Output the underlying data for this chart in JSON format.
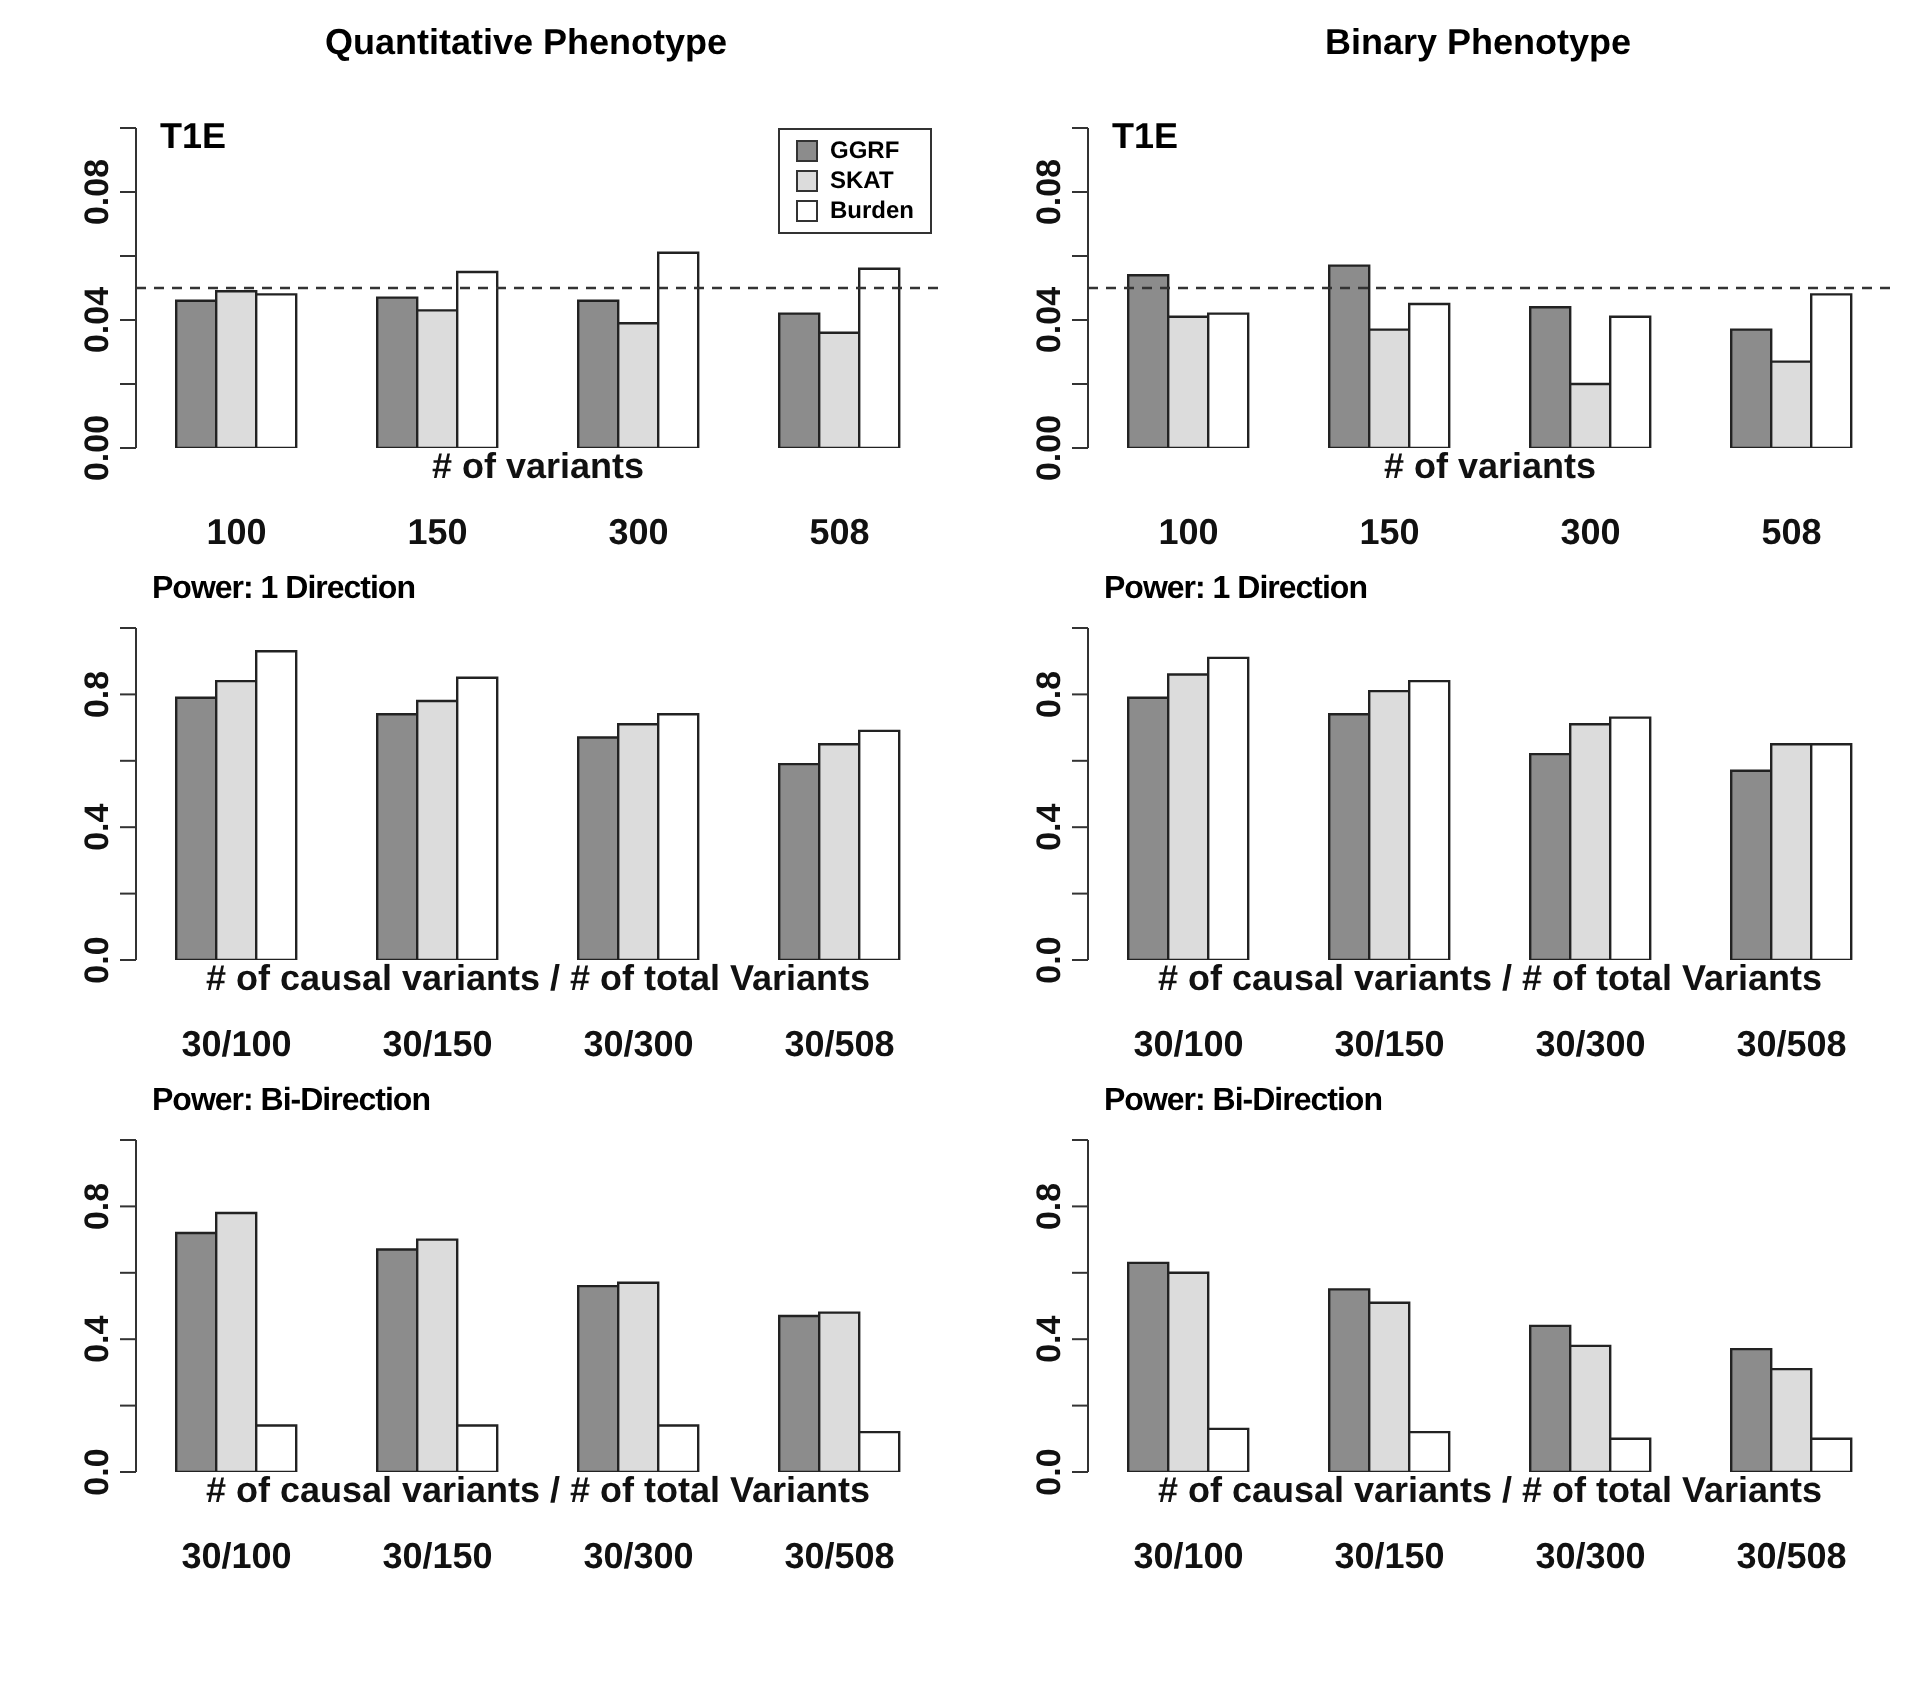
{
  "chart_data": [
    {
      "type": "bar",
      "title": "Quantitative Phenotype",
      "subtitle": "T1E",
      "xlabel": "# of variants",
      "categories": [
        "100",
        "150",
        "300",
        "508"
      ],
      "series": [
        {
          "name": "GGRF",
          "color": "#8c8c8c",
          "values": [
            0.046,
            0.047,
            0.046,
            0.042
          ]
        },
        {
          "name": "SKAT",
          "color": "#dcdcdc",
          "values": [
            0.049,
            0.043,
            0.039,
            0.036
          ]
        },
        {
          "name": "Burden",
          "color": "#ffffff",
          "values": [
            0.048,
            0.055,
            0.061,
            0.056
          ]
        }
      ],
      "ylim": [
        0,
        0.1
      ],
      "yticks": [
        {
          "value": 0,
          "label": "0.00"
        },
        {
          "value": 0.02,
          "label": null
        },
        0.04,
        {
          "value": 0.06,
          "label": null
        },
        0.08,
        {
          "value": 0.1,
          "label": null
        }
      ],
      "ref_lines": [
        {
          "axis": "y",
          "value": 0.05,
          "line_style": "dashed"
        }
      ],
      "legend": "top right"
    },
    {
      "type": "bar",
      "title": "Binary Phenotype",
      "subtitle": "T1E",
      "xlabel": "# of variants",
      "categories": [
        "100",
        "150",
        "300",
        "508"
      ],
      "series": [
        {
          "color": "#8c8c8c",
          "values": [
            0.054,
            0.057,
            0.044,
            0.037
          ]
        },
        {
          "color": "#dcdcdc",
          "values": [
            0.041,
            0.037,
            0.02,
            0.027
          ]
        },
        {
          "color": "#ffffff",
          "values": [
            0.042,
            0.045,
            0.041,
            0.048
          ]
        }
      ],
      "ylim": [
        0,
        0.1
      ],
      "yticks": [
        {
          "value": 0,
          "label": "0.00"
        },
        {
          "value": 0.02,
          "label": null
        },
        0.04,
        {
          "value": 0.06,
          "label": null
        },
        0.08,
        {
          "value": 0.1,
          "label": null
        }
      ],
      "ref_lines": [
        {
          "axis": "y",
          "value": 0.05,
          "line_style": "dashed"
        }
      ]
    },
    {
      "type": "bar",
      "title": "Power: 1 Direction",
      "xlabel": "# of causal variants / # of total Variants",
      "categories": [
        "30/100",
        "30/150",
        "30/300",
        "30/508"
      ],
      "series": [
        {
          "color": "#8c8c8c",
          "values": [
            0.79,
            0.74,
            0.67,
            0.59
          ]
        },
        {
          "color": "#dcdcdc",
          "values": [
            0.84,
            0.78,
            0.71,
            0.65
          ]
        },
        {
          "color": "#ffffff",
          "values": [
            0.93,
            0.85,
            0.74,
            0.69
          ]
        }
      ],
      "ylim": [
        0,
        1
      ],
      "yticks": [
        {
          "value": 0,
          "label": "0.0"
        },
        {
          "value": 0.2,
          "label": null
        },
        0.4,
        {
          "value": 0.6,
          "label": null
        },
        0.8,
        {
          "value": 1,
          "label": null
        }
      ]
    },
    {
      "type": "bar",
      "title": "Power: 1 Direction",
      "xlabel": "# of causal variants / # of total Variants",
      "categories": [
        "30/100",
        "30/150",
        "30/300",
        "30/508"
      ],
      "series": [
        {
          "color": "#8c8c8c",
          "values": [
            0.79,
            0.74,
            0.62,
            0.57
          ]
        },
        {
          "color": "#dcdcdc",
          "values": [
            0.86,
            0.81,
            0.71,
            0.65
          ]
        },
        {
          "color": "#ffffff",
          "values": [
            0.91,
            0.84,
            0.73,
            0.65
          ]
        }
      ],
      "ylim": [
        0,
        1
      ],
      "yticks": [
        {
          "value": 0,
          "label": "0.0"
        },
        {
          "value": 0.2,
          "label": null
        },
        0.4,
        {
          "value": 0.6,
          "label": null
        },
        0.8,
        {
          "value": 1,
          "label": null
        }
      ]
    },
    {
      "type": "bar",
      "title": "Power: Bi-Direction",
      "xlabel": "# of causal variants / # of total Variants",
      "categories": [
        "30/100",
        "30/150",
        "30/300",
        "30/508"
      ],
      "series": [
        {
          "color": "#8c8c8c",
          "values": [
            0.72,
            0.67,
            0.56,
            0.47
          ]
        },
        {
          "color": "#dcdcdc",
          "values": [
            0.78,
            0.7,
            0.57,
            0.48
          ]
        },
        {
          "color": "#ffffff",
          "values": [
            0.14,
            0.14,
            0.14,
            0.12
          ]
        }
      ],
      "ylim": [
        0,
        1
      ],
      "yticks": [
        {
          "value": 0,
          "label": "0.0"
        },
        {
          "value": 0.2,
          "label": null
        },
        0.4,
        {
          "value": 0.6,
          "label": null
        },
        0.8,
        {
          "value": 1,
          "label": null
        }
      ]
    },
    {
      "type": "bar",
      "title": "Power: Bi-Direction",
      "xlabel": "# of causal variants / # of total Variants",
      "categories": [
        "30/100",
        "30/150",
        "30/300",
        "30/508"
      ],
      "series": [
        {
          "color": "#8c8c8c",
          "values": [
            0.63,
            0.55,
            0.44,
            0.37
          ]
        },
        {
          "color": "#dcdcdc",
          "values": [
            0.6,
            0.51,
            0.38,
            0.31
          ]
        },
        {
          "color": "#ffffff",
          "values": [
            0.13,
            0.12,
            0.1,
            0.1
          ]
        }
      ],
      "ylim": [
        0,
        1
      ],
      "yticks": [
        {
          "value": 0,
          "label": "0.0"
        },
        {
          "value": 0.2,
          "label": null
        },
        0.4,
        {
          "value": 0.6,
          "label": null
        },
        0.8,
        {
          "value": 1,
          "label": null
        }
      ]
    }
  ]
}
